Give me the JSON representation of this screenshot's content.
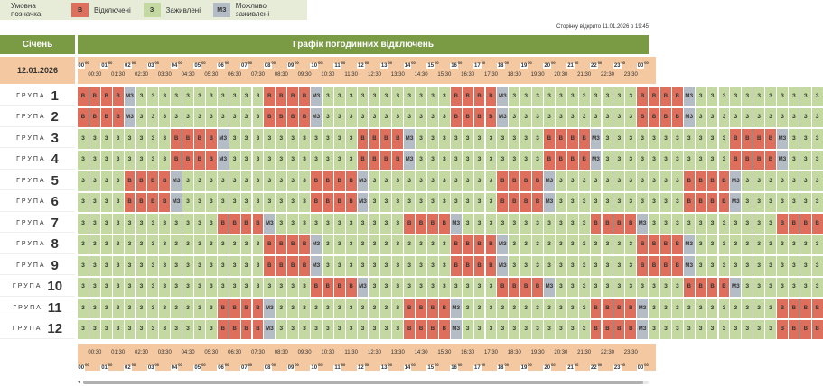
{
  "legend": {
    "label": "Умовна позначка",
    "items": [
      {
        "code": "В",
        "text": "Відключені",
        "color": "#de6f5c"
      },
      {
        "code": "З",
        "text": "Заживлені",
        "color": "#c3d9a1"
      },
      {
        "code": "МЗ",
        "text": "Можливо заживлені",
        "color": "#b4bcc6"
      }
    ]
  },
  "opened_text": "Сторінку відкрито 11.01.2026 о 19:45",
  "month": "Січень",
  "table_title": "Графік погодинних відключень",
  "date": "12.01.2026",
  "group_word": "ГРУПА",
  "hours": [
    "00",
    "01",
    "02",
    "03",
    "04",
    "05",
    "06",
    "07",
    "08",
    "09",
    "10",
    "11",
    "12",
    "13",
    "14",
    "15",
    "16",
    "17",
    "18",
    "19",
    "20",
    "21",
    "22",
    "23",
    "00"
  ],
  "half_hours": [
    "00:30",
    "01:30",
    "02:30",
    "03:30",
    "04:30",
    "05:30",
    "06:30",
    "07:30",
    "08:30",
    "09:30",
    "10:30",
    "11:30",
    "12:30",
    "13:30",
    "14:30",
    "15:30",
    "16:30",
    "17:30",
    "18:30",
    "19:30",
    "20:30",
    "21:30",
    "22:30",
    "23:30"
  ],
  "codes": {
    "z": "З",
    "v": "В",
    "m": "МЗ"
  },
  "groups": [
    {
      "number": "1",
      "slots": "vvvvmzzzzzzzzzzzvvvvmzzzzzzzzzzzvvvvmzzzzzzzzzzzvvvvmzzzzzzzzzzz"
    },
    {
      "number": "2",
      "slots": "vvvvmzzzzzzzzzzzvvvvmzzzzzzzzzzzvvvvmzzzzzzzzzzzvvvvmzzzzzzzzzzz"
    },
    {
      "number": "3",
      "slots": "zzzzzzzzvvvvmzzzzzzzzzzzvvvvmzzzzzzzzzzzvvvvmzzzzzzzzzzzvvvvmzzz"
    },
    {
      "number": "4",
      "slots": "zzzzzzzzvvvvmzzzzzzzzzzzvvvvmzzzzzzzzzzzvvvvmzzzzzzzzzzzvvvvmzzz"
    },
    {
      "number": "5",
      "slots": "zzzzvvvvmzzzzzzzzzzzvvvvmzzzzzzzzzzzvvvvmzzzzzzzzzzzvvvvmzzzzzzz"
    },
    {
      "number": "6",
      "slots": "zzzzvvvvmzzzzzzzzzzzvvvvmzzzzzzzzzzzvvvvmzzzzzzzzzzzvvvvmzzzzzzz"
    },
    {
      "number": "7",
      "slots": "zzzzzzzzzzzzvvvvmzzzzzzzzzzzvvvvmzzzzzzzzzzzvvvvmzzzzzzzzzzzvvvv"
    },
    {
      "number": "8",
      "slots": "zzzzzzzzzzzzzzzzvvvvmzzzzzzzzzzzvvvvmzzzzzzzzzzzvvvvmzzzzzzzzzzz"
    },
    {
      "number": "9",
      "slots": "zzzzzzzzzzzzzzzzvvvvmzzzzzzzzzzzvvvvmzzzzzzzzzzzvvvvmzzzzzzzzzzz"
    },
    {
      "number": "10",
      "slots": "zzzzzzzzzzzzzzzzzzzzvvvvmzzzzzzzzzzzvvvvmzzzzzzzzzzzvvvvmzzzzzzz"
    },
    {
      "number": "11",
      "slots": "zzzzzzzzzzzzvvvvmzzzzzzzzzzzvvvvmzzzzzzzzzzzvvvvmzzzzzzzzzzzvvvv"
    },
    {
      "number": "12",
      "slots": "zzzzzzzzzzzzvvvvmzzzzzzzzzzzvvvvmzzzzzzzzzzzvvvvmzzzzzzzzzzzvvvv"
    }
  ]
}
